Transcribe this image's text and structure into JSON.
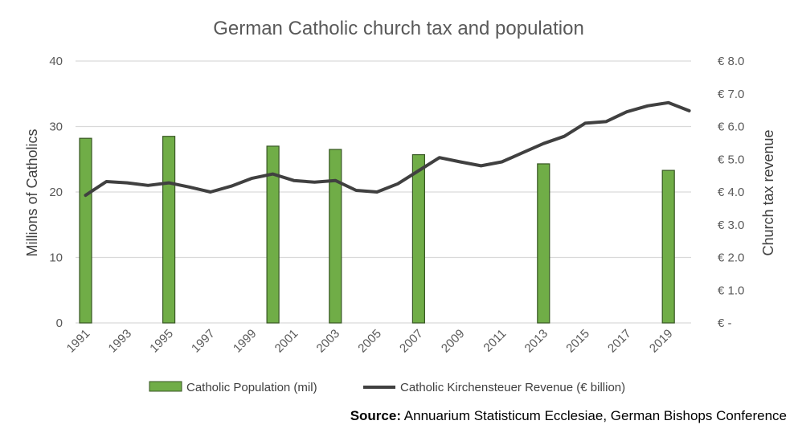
{
  "chart_data": {
    "type": "bar+line",
    "title": "German Catholic church tax and population",
    "y_left": {
      "label": "Millions of Catholics",
      "ticks": [
        "0",
        "10",
        "20",
        "30",
        "40"
      ],
      "lim": [
        0,
        40
      ]
    },
    "y_right": {
      "label": "Church tax revenue",
      "ticks": [
        "€ -",
        "€ 1.0",
        "€ 2.0",
        "€ 3.0",
        "€ 4.0",
        "€ 5.0",
        "€ 6.0",
        "€ 7.0",
        "€ 8.0"
      ],
      "lim": [
        0,
        8
      ]
    },
    "x_range": [
      1991,
      2020
    ],
    "x_tick_labels": [
      "1991",
      "1993",
      "1995",
      "1997",
      "1999",
      "2001",
      "2003",
      "2005",
      "2007",
      "2009",
      "2011",
      "2013",
      "2015",
      "2017",
      "2019"
    ],
    "grid": true,
    "legend_position": "bottom",
    "series": [
      {
        "name": "Catholic Population (mil)",
        "kind": "bar",
        "color": "#70ad47",
        "stroke": "#375623",
        "x": [
          1991,
          1995,
          2000,
          2003,
          2007,
          2013,
          2019
        ],
        "values": [
          28.2,
          28.5,
          27.0,
          26.5,
          25.7,
          24.3,
          23.3
        ]
      },
      {
        "name": "Catholic Kirchensteuer Revenue (€ billion)",
        "kind": "line",
        "color": "#404040",
        "x": [
          1991,
          1992,
          1993,
          1994,
          1995,
          1996,
          1997,
          1998,
          1999,
          2000,
          2001,
          2002,
          2003,
          2004,
          2005,
          2006,
          2007,
          2008,
          2009,
          2010,
          2011,
          2012,
          2013,
          2014,
          2015,
          2016,
          2017,
          2018,
          2019,
          2020
        ],
        "values": [
          3.9,
          4.32,
          4.28,
          4.2,
          4.28,
          4.15,
          4.0,
          4.18,
          4.42,
          4.55,
          4.35,
          4.3,
          4.35,
          4.05,
          4.0,
          4.25,
          4.65,
          5.05,
          4.92,
          4.8,
          4.92,
          5.2,
          5.48,
          5.7,
          6.1,
          6.15,
          6.45,
          6.63,
          6.73,
          6.48
        ]
      }
    ]
  },
  "source": {
    "label": "Source:",
    "text": "Annuarium Statisticum Ecclesiae, German Bishops Conference"
  }
}
